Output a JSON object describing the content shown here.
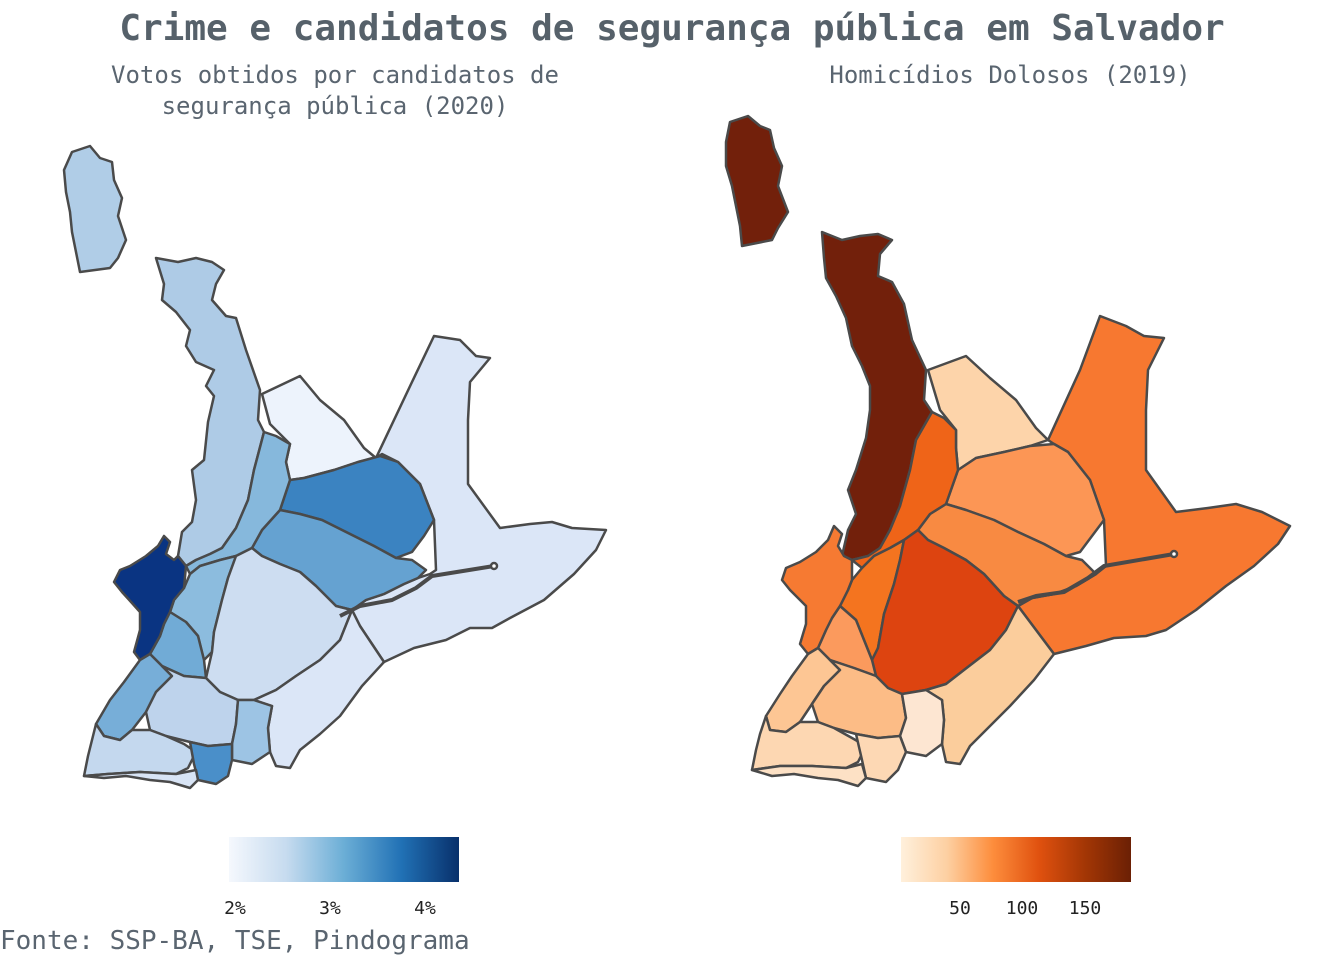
{
  "title": "Crime e candidatos de segurança pública em Salvador",
  "left_map": {
    "subtitle_line1": "Votos obtidos por candidatos de",
    "subtitle_line2": "segurança pública (2020)",
    "legend": {
      "ticks": [
        "2%",
        "3%",
        "4%"
      ],
      "tick_values": [
        0.02,
        0.03,
        0.04
      ],
      "range": [
        0.0192,
        0.0436
      ],
      "palette": "Blues"
    }
  },
  "right_map": {
    "subtitle": "Homicídios Dolosos (2019)",
    "legend": {
      "ticks": [
        "50",
        "100",
        "150"
      ],
      "tick_values": [
        50,
        100,
        150
      ],
      "range": [
        5,
        185
      ],
      "palette": "Oranges"
    }
  },
  "caption": "Fonte: SSP-BA, TSE, Pindograma",
  "colors": {
    "border": "#4a4a4a",
    "title": "#56616a",
    "background": "#ffffff"
  }
}
